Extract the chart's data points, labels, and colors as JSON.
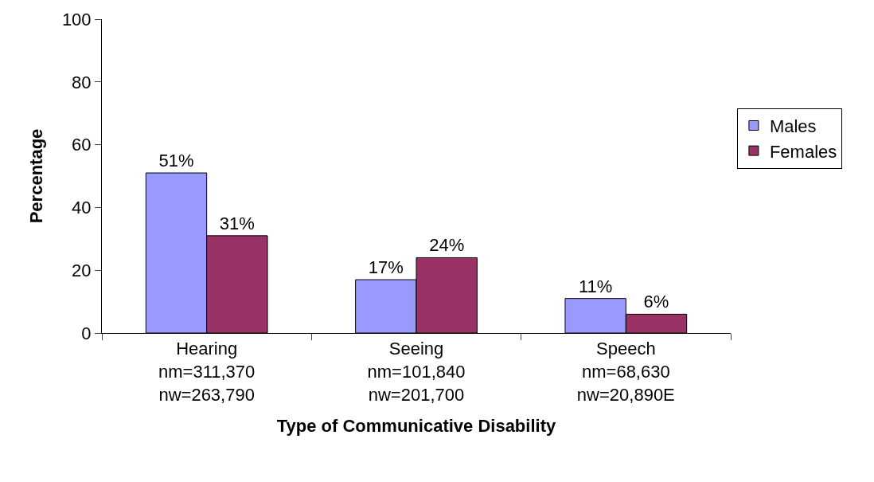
{
  "chart_data": {
    "type": "bar",
    "xlabel": "Type of Communicative Disability",
    "ylabel": "Percentage",
    "categories": [
      "Hearing\nnm=311,370\nnw=263,790",
      "Seeing\nnm=101,840\nnw=201,700",
      "Speech\nnm=68,630\nnw=20,890E"
    ],
    "series": [
      {
        "name": "Males",
        "color": "#9999ff",
        "values": [
          51,
          17,
          11
        ],
        "value_labels": [
          "51%",
          "17%",
          "11%"
        ]
      },
      {
        "name": "Females",
        "color": "#993366",
        "values": [
          31,
          24,
          6
        ],
        "value_labels": [
          "31%",
          "24%",
          "6%"
        ]
      }
    ],
    "ylim": [
      0,
      100
    ],
    "yticks": [
      0,
      20,
      40,
      60,
      80,
      100
    ],
    "grid": false,
    "legend": "right"
  }
}
